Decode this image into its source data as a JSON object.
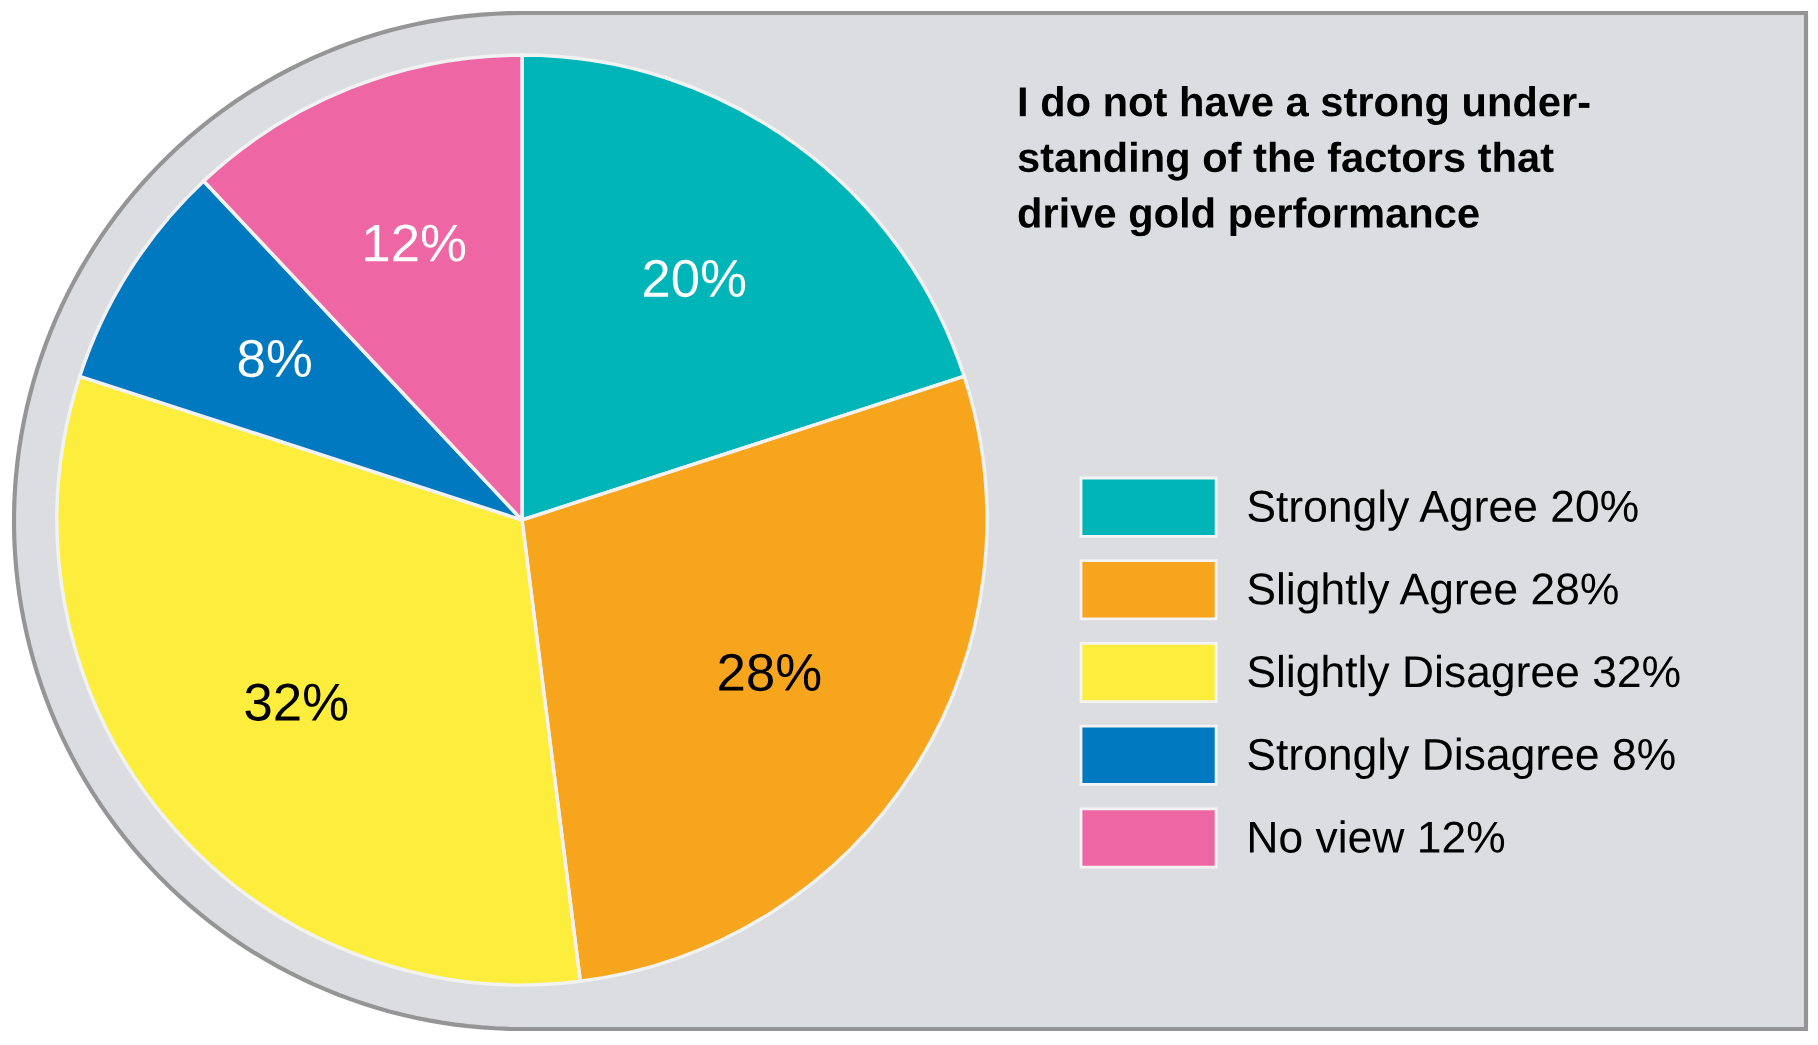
{
  "chart_data": {
    "type": "pie",
    "title": "I do not have a strong under-\nstanding of the factors that\ndrive gold performance",
    "categories": [
      "Strongly Agree 20%",
      "Slightly Agree 28%",
      "Slightly Disagree 32%",
      "Strongly Disagree 8%",
      "No view 12%"
    ],
    "values": [
      20,
      28,
      32,
      8,
      12
    ],
    "colors": [
      "#00b5b8",
      "#f7a51c",
      "#fdee3d",
      "#0079c1",
      "#ee67a4"
    ],
    "value_labels": [
      "20%",
      "28%",
      "32%",
      "8%",
      "12%"
    ],
    "legend": "right"
  }
}
